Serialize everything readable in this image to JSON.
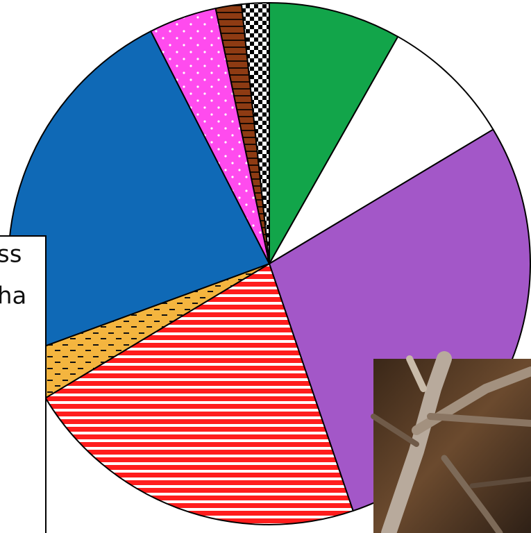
{
  "chart_data": {
    "type": "pie",
    "values": [
      8.2,
      8.2,
      28.4,
      21.6,
      3.0,
      23.1,
      4.2,
      1.6,
      1.7
    ],
    "colors": [
      "#12a54a",
      "#ffffff",
      "#a357c8",
      "#ff1d1d",
      "#f4b53f",
      "#0f69b6",
      "#ff4bee",
      "#8e3b13",
      "#ffffff"
    ],
    "patterns": [
      "none",
      "none",
      "none",
      "red-stripes",
      "yellow-dashes",
      "none",
      "pink-dots",
      "brown-stripes",
      "checker"
    ],
    "legend_text": [
      "ss",
      "ha"
    ]
  }
}
